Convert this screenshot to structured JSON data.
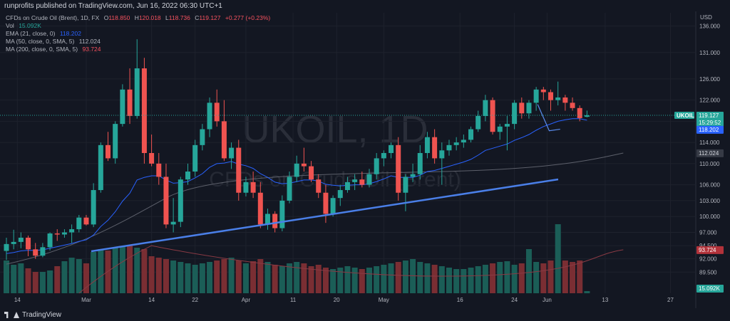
{
  "header": {
    "publisher_text": "runprofits published on TradingView.com, Jun 16, 2022 06:30 UTC+1"
  },
  "legend": {
    "symbol": "CFDs on Crude Oil (Brent), 1D, FX",
    "ohlc": {
      "o_label": "O",
      "o": "118.850",
      "h_label": "H",
      "h": "120.018",
      "l_label": "L",
      "l": "118.736",
      "c_label": "C",
      "c": "119.127",
      "change": "+0.277 (+0.23%)"
    },
    "vol_label": "Vol",
    "vol_value": "15.092K",
    "ema_label": "EMA (21, close, 0)",
    "ema_value": "118.202",
    "ma50_label": "MA (50, close, 0, SMA, 5)",
    "ma50_value": "112.024",
    "ma200_label": "MA (200, close, 0, SMA, 5)",
    "ma200_value": "93.724"
  },
  "watermark": {
    "main": "UKOIL, 1D",
    "sub": "CFDs on Crude Oil (Brent)"
  },
  "footer": {
    "logo_text": "TradingView"
  },
  "colors": {
    "background": "#131722",
    "up": "#26a69a",
    "down": "#ef5350",
    "volume_up": "#1b5e57",
    "volume_down": "#7a2e33",
    "ema": "#2962ff",
    "ma50": "#9598a1",
    "ma200": "#f7525f",
    "trendline": "#4a7fe8",
    "grid": "#1e222d"
  },
  "chart_data": {
    "type": "candlestick",
    "currency_label": "USD",
    "ylim": [
      85.5,
      138.5
    ],
    "y_ticks": [
      "136.000",
      "131.000",
      "126.000",
      "122.000",
      "118.000",
      "114.000",
      "110.000",
      "106.000",
      "103.000",
      "100.000",
      "97.000",
      "94.500",
      "92.000",
      "89.500"
    ],
    "x_ticks": [
      "14",
      "Mar",
      "14",
      "22",
      "Apr",
      "11",
      "20",
      "May",
      "16",
      "24",
      "Jun",
      "13",
      "27"
    ],
    "last_price_label": "UKOIL",
    "last_price": "119.127",
    "countdown": "15:29:52",
    "ema_tag": "118.202",
    "ma50_tag": "112.024",
    "ma200_tag": "93.724",
    "volume_tag": "15.092K",
    "candles": [
      {
        "o": 93.5,
        "h": 96.0,
        "l": 91.8,
        "c": 94.8
      },
      {
        "o": 94.8,
        "h": 97.5,
        "l": 93.8,
        "c": 95.2
      },
      {
        "o": 95.2,
        "h": 97.0,
        "l": 94.0,
        "c": 96.0
      },
      {
        "o": 96.0,
        "h": 96.4,
        "l": 92.5,
        "c": 93.8
      },
      {
        "o": 93.8,
        "h": 95.0,
        "l": 92.0,
        "c": 92.6
      },
      {
        "o": 92.6,
        "h": 95.0,
        "l": 92.3,
        "c": 94.2
      },
      {
        "o": 94.2,
        "h": 97.0,
        "l": 93.6,
        "c": 96.8
      },
      {
        "o": 96.8,
        "h": 97.6,
        "l": 95.4,
        "c": 96.6
      },
      {
        "o": 96.6,
        "h": 97.6,
        "l": 96.0,
        "c": 97.0
      },
      {
        "o": 97.0,
        "h": 98.5,
        "l": 95.0,
        "c": 97.6
      },
      {
        "o": 97.6,
        "h": 100.3,
        "l": 97.0,
        "c": 99.8
      },
      {
        "o": 99.8,
        "h": 100.3,
        "l": 98.3,
        "c": 98.5
      },
      {
        "o": 98.5,
        "h": 106.3,
        "l": 98.0,
        "c": 105.0
      },
      {
        "o": 105.0,
        "h": 114.0,
        "l": 104.5,
        "c": 113.5
      },
      {
        "o": 113.5,
        "h": 116.0,
        "l": 110.5,
        "c": 111.0
      },
      {
        "o": 111.0,
        "h": 118.0,
        "l": 110.0,
        "c": 117.5
      },
      {
        "o": 117.5,
        "h": 125.0,
        "l": 117.0,
        "c": 124.0
      },
      {
        "o": 124.0,
        "h": 128.0,
        "l": 117.5,
        "c": 119.0
      },
      {
        "o": 119.0,
        "h": 133.5,
        "l": 118.5,
        "c": 128.0
      },
      {
        "o": 128.0,
        "h": 130.0,
        "l": 110.0,
        "c": 112.0
      },
      {
        "o": 112.0,
        "h": 115.5,
        "l": 109.5,
        "c": 110.0
      },
      {
        "o": 110.0,
        "h": 112.0,
        "l": 106.0,
        "c": 107.5
      },
      {
        "o": 107.5,
        "h": 110.0,
        "l": 97.8,
        "c": 98.5
      },
      {
        "o": 98.5,
        "h": 103.5,
        "l": 97.0,
        "c": 99.0
      },
      {
        "o": 99.0,
        "h": 107.5,
        "l": 98.0,
        "c": 107.0
      },
      {
        "o": 107.0,
        "h": 110.0,
        "l": 106.0,
        "c": 108.5
      },
      {
        "o": 108.5,
        "h": 114.5,
        "l": 107.5,
        "c": 113.5
      },
      {
        "o": 113.5,
        "h": 117.5,
        "l": 112.5,
        "c": 116.5
      },
      {
        "o": 116.5,
        "h": 122.5,
        "l": 115.0,
        "c": 121.5
      },
      {
        "o": 121.5,
        "h": 124.0,
        "l": 117.0,
        "c": 118.0
      },
      {
        "o": 118.0,
        "h": 122.0,
        "l": 110.5,
        "c": 111.0
      },
      {
        "o": 111.0,
        "h": 114.0,
        "l": 109.0,
        "c": 113.0
      },
      {
        "o": 113.0,
        "h": 114.5,
        "l": 103.0,
        "c": 104.5
      },
      {
        "o": 104.5,
        "h": 107.5,
        "l": 103.8,
        "c": 106.5
      },
      {
        "o": 106.5,
        "h": 108.5,
        "l": 103.5,
        "c": 104.5
      },
      {
        "o": 104.5,
        "h": 106.5,
        "l": 97.8,
        "c": 98.5
      },
      {
        "o": 98.5,
        "h": 101.5,
        "l": 97.5,
        "c": 100.5
      },
      {
        "o": 100.5,
        "h": 101.0,
        "l": 97.0,
        "c": 97.8
      },
      {
        "o": 97.8,
        "h": 104.0,
        "l": 97.2,
        "c": 103.0
      },
      {
        "o": 103.0,
        "h": 108.5,
        "l": 102.5,
        "c": 107.5
      },
      {
        "o": 107.5,
        "h": 111.5,
        "l": 106.5,
        "c": 110.0
      },
      {
        "o": 110.0,
        "h": 113.0,
        "l": 108.5,
        "c": 109.5
      },
      {
        "o": 109.5,
        "h": 110.5,
        "l": 106.5,
        "c": 107.0
      },
      {
        "o": 107.0,
        "h": 108.0,
        "l": 103.5,
        "c": 104.5
      },
      {
        "o": 104.5,
        "h": 106.0,
        "l": 98.8,
        "c": 100.5
      },
      {
        "o": 100.5,
        "h": 104.0,
        "l": 100.0,
        "c": 103.5
      },
      {
        "o": 103.5,
        "h": 106.0,
        "l": 102.0,
        "c": 105.0
      },
      {
        "o": 105.0,
        "h": 107.5,
        "l": 104.5,
        "c": 106.5
      },
      {
        "o": 106.5,
        "h": 108.0,
        "l": 105.0,
        "c": 107.0
      },
      {
        "o": 107.0,
        "h": 108.5,
        "l": 105.5,
        "c": 106.0
      },
      {
        "o": 106.0,
        "h": 109.0,
        "l": 105.5,
        "c": 108.0
      },
      {
        "o": 108.0,
        "h": 112.0,
        "l": 107.0,
        "c": 111.0
      },
      {
        "o": 111.0,
        "h": 112.5,
        "l": 109.5,
        "c": 112.0
      },
      {
        "o": 112.0,
        "h": 114.0,
        "l": 111.0,
        "c": 113.5
      },
      {
        "o": 113.5,
        "h": 115.0,
        "l": 103.0,
        "c": 104.5
      },
      {
        "o": 104.5,
        "h": 108.0,
        "l": 101.0,
        "c": 107.5
      },
      {
        "o": 107.5,
        "h": 110.0,
        "l": 106.5,
        "c": 108.0
      },
      {
        "o": 108.0,
        "h": 113.5,
        "l": 107.0,
        "c": 112.0
      },
      {
        "o": 112.0,
        "h": 116.0,
        "l": 111.0,
        "c": 115.0
      },
      {
        "o": 115.0,
        "h": 116.5,
        "l": 110.0,
        "c": 111.0
      },
      {
        "o": 111.0,
        "h": 114.0,
        "l": 106.0,
        "c": 112.5
      },
      {
        "o": 112.5,
        "h": 114.5,
        "l": 111.5,
        "c": 113.5
      },
      {
        "o": 113.5,
        "h": 115.0,
        "l": 112.5,
        "c": 114.0
      },
      {
        "o": 114.0,
        "h": 115.5,
        "l": 113.0,
        "c": 114.5
      },
      {
        "o": 114.5,
        "h": 117.0,
        "l": 114.0,
        "c": 116.5
      },
      {
        "o": 116.5,
        "h": 120.0,
        "l": 116.0,
        "c": 119.0
      },
      {
        "o": 119.0,
        "h": 123.0,
        "l": 118.0,
        "c": 122.0
      },
      {
        "o": 122.0,
        "h": 122.5,
        "l": 115.5,
        "c": 116.0
      },
      {
        "o": 116.0,
        "h": 117.5,
        "l": 114.5,
        "c": 117.0
      },
      {
        "o": 117.0,
        "h": 119.0,
        "l": 112.5,
        "c": 117.5
      },
      {
        "o": 117.5,
        "h": 122.0,
        "l": 116.5,
        "c": 121.5
      },
      {
        "o": 121.5,
        "h": 122.5,
        "l": 118.5,
        "c": 119.5
      },
      {
        "o": 119.5,
        "h": 122.0,
        "l": 118.5,
        "c": 121.5
      },
      {
        "o": 121.5,
        "h": 124.5,
        "l": 120.0,
        "c": 124.0
      },
      {
        "o": 124.0,
        "h": 124.5,
        "l": 122.0,
        "c": 123.5
      },
      {
        "o": 123.5,
        "h": 124.0,
        "l": 120.0,
        "c": 122.0
      },
      {
        "o": 122.0,
        "h": 125.5,
        "l": 121.0,
        "c": 122.5
      },
      {
        "o": 122.5,
        "h": 123.0,
        "l": 120.0,
        "c": 121.5
      },
      {
        "o": 121.5,
        "h": 122.5,
        "l": 120.0,
        "c": 120.5
      },
      {
        "o": 120.5,
        "h": 121.0,
        "l": 118.0,
        "c": 118.6
      },
      {
        "o": 118.85,
        "h": 120.018,
        "l": 118.736,
        "c": 119.127
      }
    ],
    "volume": [
      46,
      40,
      42,
      35,
      30,
      30,
      32,
      38,
      45,
      50,
      48,
      42,
      58,
      62,
      60,
      64,
      66,
      68,
      64,
      62,
      52,
      50,
      48,
      46,
      44,
      42,
      40,
      42,
      44,
      46,
      48,
      50,
      46,
      42,
      45,
      48,
      44,
      40,
      38,
      42,
      44,
      42,
      38,
      40,
      36,
      34,
      36,
      38,
      36,
      34,
      36,
      38,
      40,
      42,
      44,
      46,
      48,
      44,
      42,
      40,
      38,
      36,
      34,
      34,
      36,
      38,
      40,
      42,
      44,
      45,
      40,
      42,
      62,
      44,
      42,
      46,
      97,
      46,
      44,
      46,
      3
    ],
    "ema_21": [
      93.0,
      93.2,
      93.5,
      93.6,
      93.6,
      93.7,
      94.0,
      94.3,
      94.6,
      94.9,
      95.3,
      95.6,
      96.5,
      98.1,
      99.3,
      100.9,
      102.9,
      104.4,
      106.9,
      107.4,
      107.7,
      107.7,
      106.9,
      106.3,
      106.4,
      106.6,
      107.3,
      108.1,
      109.3,
      110.0,
      110.1,
      110.4,
      109.9,
      109.6,
      109.1,
      108.1,
      107.4,
      106.5,
      106.2,
      106.3,
      106.6,
      106.9,
      106.9,
      106.7,
      106.1,
      105.9,
      105.8,
      105.9,
      106.0,
      106.0,
      106.2,
      106.6,
      107.1,
      107.7,
      107.4,
      107.4,
      107.4,
      107.8,
      108.5,
      108.7,
      109.1,
      109.5,
      109.9,
      110.3,
      110.8,
      111.6,
      112.5,
      112.9,
      113.3,
      113.7,
      114.4,
      114.9,
      115.5,
      116.3,
      117.0,
      117.5,
      118.0,
      118.3,
      118.5,
      118.5,
      118.2
    ]
  }
}
